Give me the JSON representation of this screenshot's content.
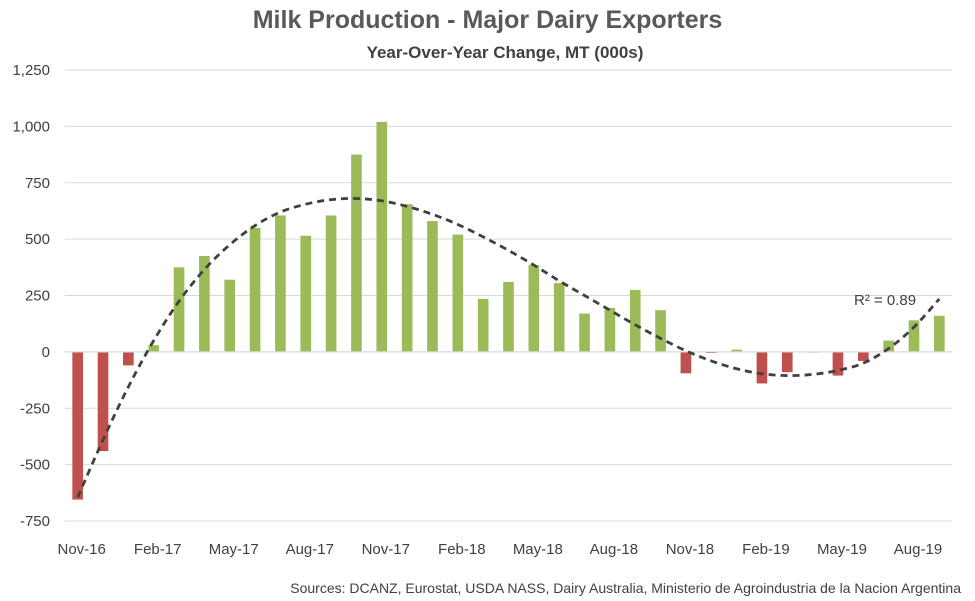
{
  "chart_data": {
    "type": "bar",
    "title": "Milk Production - Major Dairy Exporters",
    "subtitle": "Year-Over-Year Change, MT (000s)",
    "source": "Sources: DCANZ, Eurostat, USDA NASS, Dairy Australia, Ministerio de Agroindustria de la Nacion Argentina",
    "categories": [
      "Nov-16",
      "Dec-16",
      "Jan-17",
      "Feb-17",
      "Mar-17",
      "Apr-17",
      "May-17",
      "Jun-17",
      "Jul-17",
      "Aug-17",
      "Sep-17",
      "Oct-17",
      "Nov-17",
      "Dec-17",
      "Jan-18",
      "Feb-18",
      "Mar-18",
      "Apr-18",
      "May-18",
      "Jun-18",
      "Jul-18",
      "Aug-18",
      "Sep-18",
      "Oct-18",
      "Nov-18",
      "Dec-18",
      "Jan-19",
      "Feb-19",
      "Mar-19",
      "Apr-19",
      "May-19",
      "Jun-19",
      "Jul-19",
      "Aug-19",
      "Sep-19"
    ],
    "x_tick_labels": [
      "Nov-16",
      "Feb-17",
      "May-17",
      "Aug-17",
      "Nov-17",
      "Feb-18",
      "May-18",
      "Aug-18",
      "Nov-18",
      "Feb-19",
      "May-19",
      "Aug-19"
    ],
    "values": [
      -655,
      -440,
      -60,
      30,
      375,
      425,
      320,
      550,
      605,
      515,
      605,
      875,
      1020,
      655,
      580,
      520,
      235,
      310,
      385,
      305,
      170,
      195,
      275,
      185,
      -95,
      -5,
      10,
      -140,
      -90,
      0,
      -105,
      -40,
      50,
      140,
      160
    ],
    "ylim": [
      -750,
      1250
    ],
    "yticks": [
      -750,
      -500,
      -250,
      0,
      250,
      500,
      750,
      1000,
      1250
    ],
    "grid": true,
    "colors": {
      "positive": "#9BBB59",
      "negative": "#C0504D",
      "trendline": "#404040",
      "gridline": "#d9d9d9"
    },
    "trendline": {
      "type": "polynomial",
      "style": "dashed",
      "label": "R² = 0.89",
      "points": [
        -645,
        -390,
        -155,
        50,
        225,
        365,
        475,
        560,
        620,
        655,
        675,
        680,
        670,
        645,
        610,
        565,
        510,
        450,
        385,
        315,
        250,
        185,
        120,
        60,
        5,
        -40,
        -75,
        -97,
        -105,
        -100,
        -82,
        -50,
        15,
        110,
        235
      ]
    }
  }
}
